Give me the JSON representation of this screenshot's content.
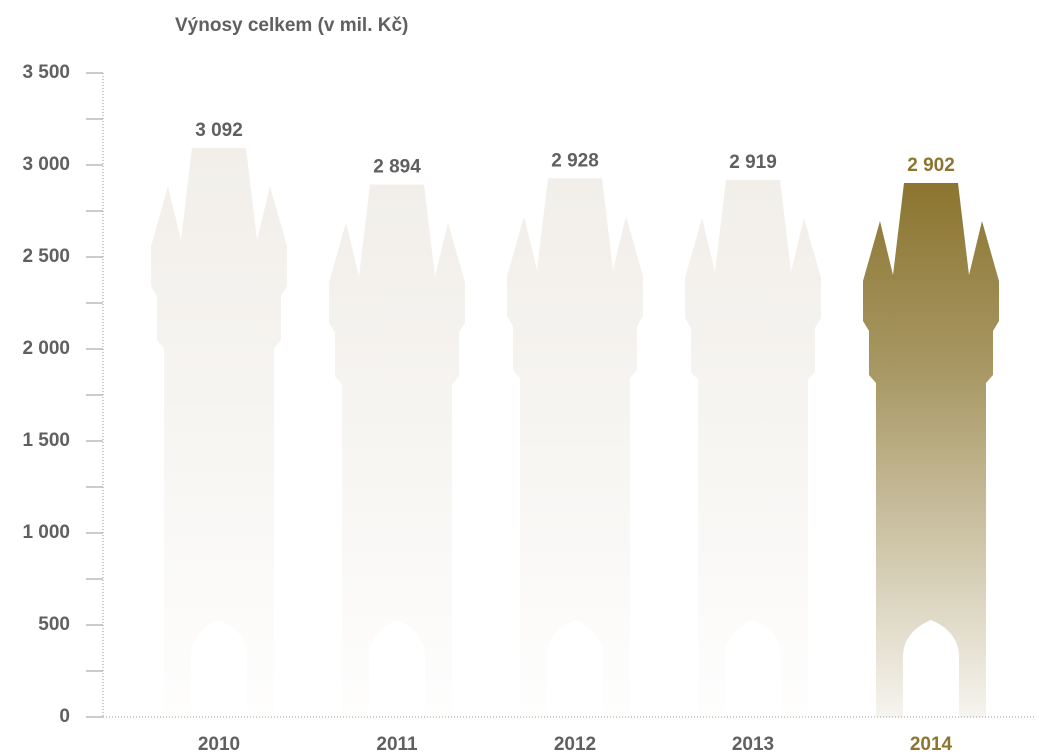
{
  "chart_data": {
    "type": "tower-bar",
    "title": "Výnosy celkem (v mil. Kč)",
    "categories": [
      "2010",
      "2011",
      "2012",
      "2013",
      "2014"
    ],
    "values": [
      3092,
      2894,
      2928,
      2919,
      2902
    ],
    "value_labels": [
      "3 092",
      "2 894",
      "2 928",
      "2 919",
      "2 902"
    ],
    "colors": [
      "#f2efea",
      "#f2efea",
      "#f2efea",
      "#f2efea",
      "#8b7530"
    ],
    "label_colors": [
      "#606060",
      "#606060",
      "#606060",
      "#606060",
      "#8b7530"
    ],
    "ylim": [
      0,
      3500
    ],
    "yticks": [
      {
        "value": 0,
        "label": "0"
      },
      {
        "value": 500,
        "label": "500"
      },
      {
        "value": 1000,
        "label": "1 000"
      },
      {
        "value": 1500,
        "label": "1 500"
      },
      {
        "value": 2000,
        "label": "2 000"
      },
      {
        "value": 2500,
        "label": "2 500"
      },
      {
        "value": 3000,
        "label": "3 000"
      },
      {
        "value": 3500,
        "label": "3 500"
      }
    ],
    "minor_yticks": [
      250,
      750,
      1250,
      1750,
      2250,
      2750,
      3250
    ]
  }
}
